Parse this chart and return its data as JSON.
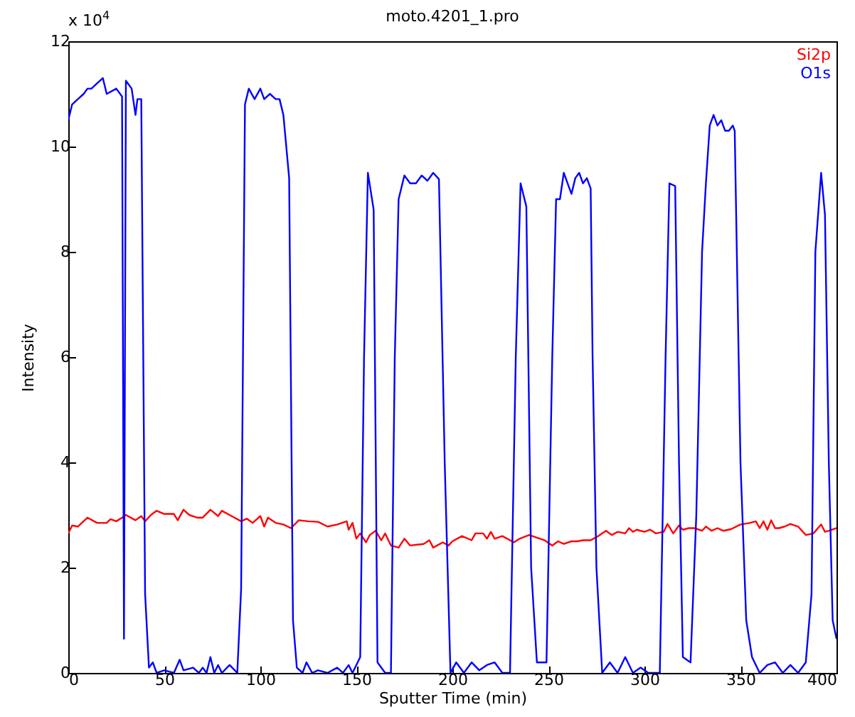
{
  "chart_data": {
    "type": "line",
    "title": "moto.4201_1.pro",
    "xlabel": "Sputter Time (min)",
    "ylabel": "Intensity",
    "annotations": [
      "x 10$^{4}$"
    ],
    "xlim": [
      0,
      400
    ],
    "xticks": [
      0,
      50,
      100,
      150,
      200,
      250,
      300,
      350,
      400
    ],
    "ylim": [
      0,
      12
    ],
    "yticks": [
      0,
      2,
      4,
      6,
      8,
      10,
      12
    ],
    "grid": false,
    "legend": "top right",
    "marker": "none",
    "line_style": "solid",
    "series": [
      {
        "name": "Si2p",
        "color": "#ff0000",
        "x": [
          0,
          2,
          5,
          10,
          15,
          20,
          22,
          25,
          28,
          30,
          35,
          38,
          40,
          43,
          46,
          50,
          55,
          57,
          60,
          63,
          67,
          70,
          74,
          78,
          80,
          85,
          90,
          93,
          96,
          100,
          102,
          104,
          108,
          112,
          116,
          120,
          125,
          130,
          135,
          140,
          145,
          146,
          148,
          150,
          152,
          155,
          157,
          160,
          163,
          165,
          168,
          172,
          175,
          178,
          185,
          188,
          190,
          195,
          198,
          200,
          205,
          210,
          212,
          216,
          218,
          220,
          222,
          226,
          230,
          232,
          235,
          240,
          244,
          248,
          252,
          255,
          258,
          262,
          265,
          268,
          272,
          276,
          280,
          283,
          286,
          290,
          292,
          294,
          296,
          300,
          303,
          306,
          310,
          312,
          315,
          318,
          320,
          323,
          326,
          330,
          332,
          335,
          338,
          341,
          345,
          350,
          355,
          358,
          360,
          362,
          364,
          366,
          368,
          370,
          373,
          376,
          380,
          384,
          388,
          392,
          394,
          396,
          400
        ],
        "values": [
          2.65,
          2.8,
          2.78,
          2.95,
          2.85,
          2.85,
          2.92,
          2.88,
          2.95,
          3.0,
          2.9,
          2.98,
          2.88,
          3.0,
          3.08,
          3.02,
          3.02,
          2.9,
          3.1,
          3.0,
          2.95,
          2.95,
          3.1,
          2.98,
          3.08,
          2.98,
          2.88,
          2.93,
          2.85,
          2.98,
          2.78,
          2.95,
          2.85,
          2.82,
          2.75,
          2.9,
          2.88,
          2.87,
          2.78,
          2.82,
          2.88,
          2.72,
          2.85,
          2.55,
          2.65,
          2.48,
          2.62,
          2.7,
          2.52,
          2.65,
          2.42,
          2.38,
          2.55,
          2.42,
          2.45,
          2.52,
          2.38,
          2.48,
          2.42,
          2.5,
          2.6,
          2.52,
          2.65,
          2.65,
          2.55,
          2.68,
          2.55,
          2.6,
          2.52,
          2.48,
          2.55,
          2.62,
          2.57,
          2.52,
          2.42,
          2.5,
          2.45,
          2.5,
          2.5,
          2.52,
          2.52,
          2.6,
          2.7,
          2.62,
          2.68,
          2.65,
          2.75,
          2.68,
          2.72,
          2.68,
          2.72,
          2.65,
          2.68,
          2.83,
          2.65,
          2.8,
          2.72,
          2.75,
          2.75,
          2.7,
          2.78,
          2.7,
          2.75,
          2.7,
          2.73,
          2.82,
          2.85,
          2.88,
          2.75,
          2.88,
          2.72,
          2.9,
          2.75,
          2.75,
          2.78,
          2.83,
          2.78,
          2.62,
          2.65,
          2.82,
          2.68,
          2.7,
          2.75
        ]
      },
      {
        "name": "O1s",
        "color": "#0000ff",
        "x": [
          0,
          2,
          5,
          8,
          10,
          12,
          15,
          18,
          20,
          25,
          28,
          29,
          30,
          33,
          35,
          36,
          38,
          40,
          42,
          44,
          46,
          50,
          55,
          58,
          60,
          65,
          68,
          70,
          72,
          74,
          76,
          78,
          80,
          84,
          88,
          90,
          92,
          94,
          97,
          100,
          102,
          105,
          108,
          110,
          112,
          115,
          117,
          119,
          122,
          124,
          127,
          130,
          135,
          140,
          143,
          146,
          148,
          152,
          154,
          156,
          159,
          161,
          165,
          168,
          170,
          172,
          175,
          178,
          181,
          184,
          187,
          190,
          193,
          196,
          199,
          202,
          206,
          210,
          214,
          218,
          222,
          226,
          230,
          233,
          235.5,
          238.5,
          241,
          244,
          249,
          252,
          254,
          256,
          258,
          260,
          262,
          264,
          266,
          268,
          270,
          272,
          273,
          275,
          278,
          282,
          286,
          290,
          294,
          298,
          302,
          308,
          311,
          313,
          316,
          318,
          320,
          324,
          327,
          330,
          332,
          334,
          336,
          338,
          340,
          342,
          344,
          346,
          347,
          350,
          353,
          356,
          360,
          364,
          368,
          372,
          376,
          380,
          384,
          387,
          389,
          392,
          394,
          396,
          398,
          400
        ],
        "values": [
          10.5,
          10.8,
          10.9,
          11.0,
          11.1,
          11.1,
          11.2,
          11.3,
          11.0,
          11.1,
          10.95,
          0.65,
          11.25,
          11.1,
          10.6,
          10.9,
          10.9,
          1.5,
          0.1,
          0.2,
          0.0,
          0.05,
          0.0,
          0.25,
          0.05,
          0.1,
          0.0,
          0.1,
          0.0,
          0.3,
          0.0,
          0.15,
          0.0,
          0.15,
          0.0,
          1.6,
          10.8,
          11.1,
          10.9,
          11.1,
          10.9,
          11.0,
          10.9,
          10.9,
          10.6,
          9.4,
          1.0,
          0.1,
          0.0,
          0.2,
          0.0,
          0.05,
          0.0,
          0.1,
          0.0,
          0.15,
          0.0,
          0.3,
          6.0,
          9.5,
          8.8,
          0.2,
          0.0,
          0.0,
          6.0,
          9.0,
          9.45,
          9.3,
          9.3,
          9.45,
          9.35,
          9.5,
          9.38,
          4.0,
          0.0,
          0.2,
          0.0,
          0.2,
          0.05,
          0.15,
          0.2,
          0.0,
          0.0,
          6.0,
          9.3,
          8.86,
          2.0,
          0.2,
          0.2,
          6.0,
          9.0,
          9.0,
          9.5,
          9.3,
          9.1,
          9.4,
          9.5,
          9.3,
          9.4,
          9.2,
          6.0,
          2.0,
          0.0,
          0.2,
          0.0,
          0.3,
          0.0,
          0.1,
          0.0,
          0.0,
          6.0,
          9.3,
          9.25,
          4.0,
          0.3,
          0.2,
          3.0,
          8.0,
          9.3,
          10.4,
          10.6,
          10.4,
          10.5,
          10.3,
          10.3,
          10.4,
          10.3,
          4.0,
          1.0,
          0.3,
          0.0,
          0.15,
          0.2,
          0.0,
          0.15,
          0.0,
          0.2,
          1.5,
          8.0,
          9.5,
          8.7,
          4.0,
          1.0,
          0.65
        ]
      }
    ]
  }
}
